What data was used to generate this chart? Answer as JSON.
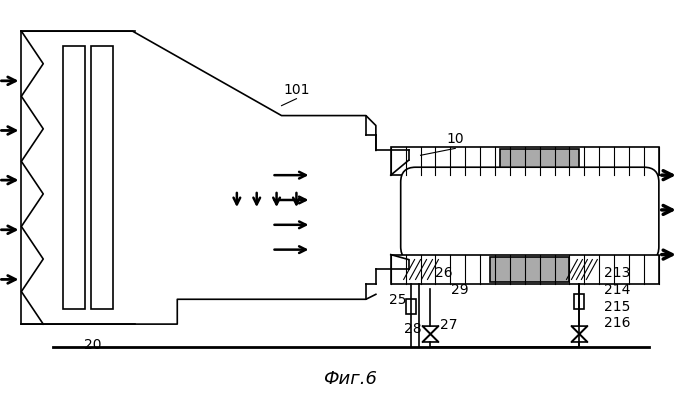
{
  "title": "Фиг.6",
  "bg_color": "#ffffff",
  "line_color": "#000000",
  "label_101": "101",
  "label_10": "10",
  "label_20": "20",
  "label_25": "25",
  "label_26": "26",
  "label_27": "27",
  "label_28": "28",
  "label_29": "29",
  "label_213": "213",
  "label_214": "214",
  "label_215": "215",
  "label_216": "216",
  "figsize": [
    6.98,
    3.95
  ],
  "dpi": 100
}
